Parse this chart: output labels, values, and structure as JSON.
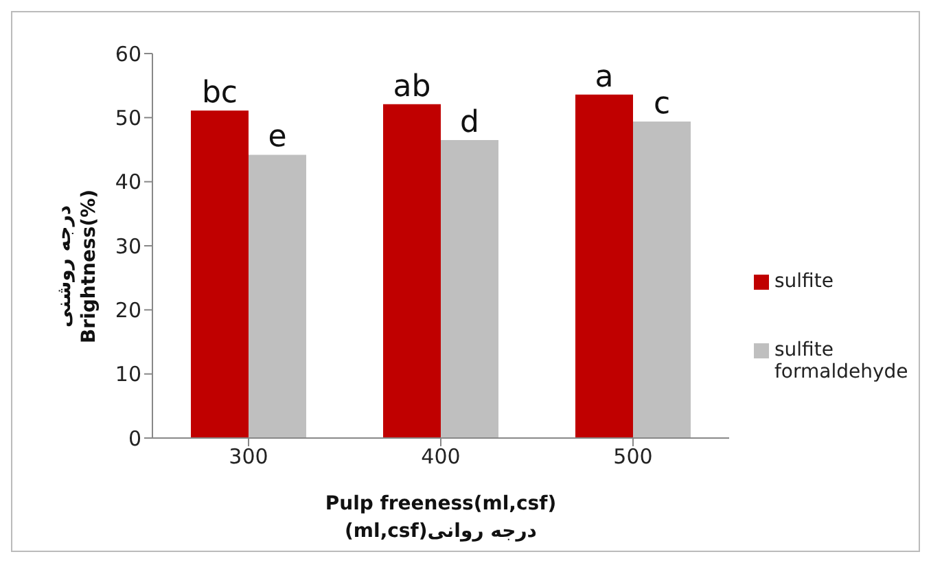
{
  "chart_data": {
    "type": "bar",
    "xlabel": "Pulp freeness(ml,csf)\n(ml,csf)درجه روانی",
    "ylabel": "درجه روشنی\nBrightness(%)",
    "categories": [
      "300",
      "400",
      "500"
    ],
    "series": [
      {
        "name": "sulfite",
        "color": "#c00000",
        "values": [
          51.1,
          52.1,
          53.6
        ]
      },
      {
        "name": "sulfite formaldehyde",
        "color": "#bfbfbf",
        "values": [
          44.2,
          46.5,
          49.4
        ]
      }
    ],
    "ylim": [
      0,
      60
    ],
    "yticks": [
      0,
      10,
      20,
      30,
      40,
      50,
      60
    ],
    "grid": false,
    "legend": "right",
    "annotations": [
      {
        "text": "bc",
        "x": "300",
        "y": 51.1
      },
      {
        "text": "e",
        "x": "300",
        "y": 44.2
      },
      {
        "text": "ab",
        "x": "400",
        "y": 52.1
      },
      {
        "text": "d",
        "x": "400",
        "y": 46.5
      },
      {
        "text": "a",
        "x": "500",
        "y": 53.6
      },
      {
        "text": "c",
        "x": "500",
        "y": 49.4
      }
    ]
  }
}
